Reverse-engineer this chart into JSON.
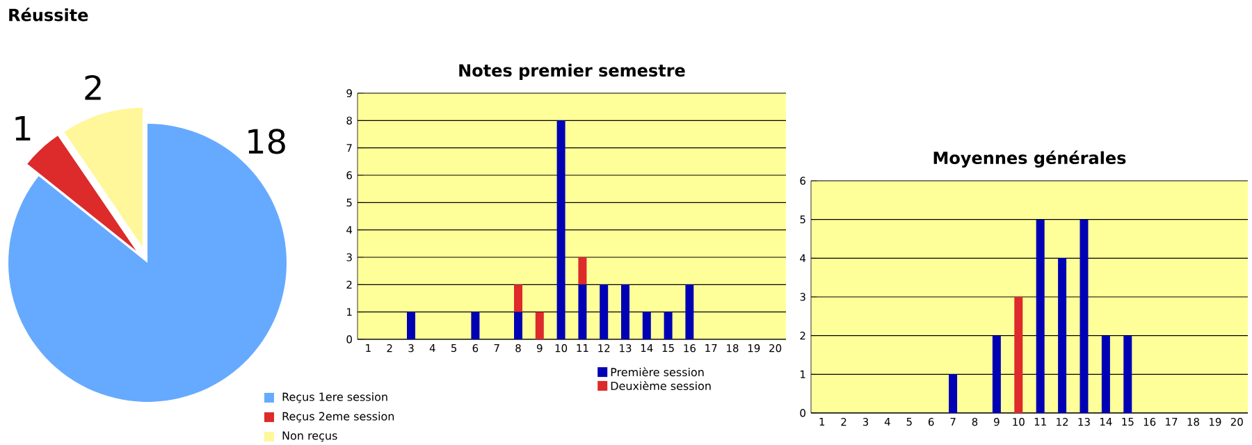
{
  "chart_data": [
    {
      "type": "pie",
      "title": "Réussite",
      "categories": [
        "Reçus 1ere session",
        "Reçus 2eme session",
        "Non reçus"
      ],
      "values": [
        18,
        1,
        2
      ],
      "colors": [
        "#66aaff",
        "#dd2a2a",
        "#fff799"
      ],
      "data_labels": true,
      "legend": "bottom right"
    },
    {
      "type": "bar",
      "title": "Notes premier semestre",
      "stacked": true,
      "categories": [
        "1",
        "2",
        "3",
        "4",
        "5",
        "6",
        "7",
        "8",
        "9",
        "10",
        "11",
        "12",
        "13",
        "14",
        "15",
        "16",
        "17",
        "18",
        "19",
        "20"
      ],
      "series": [
        {
          "name": "Première session",
          "color": "#0000b4",
          "values": [
            0,
            0,
            1,
            0,
            0,
            1,
            0,
            1,
            0,
            8,
            2,
            2,
            2,
            1,
            1,
            2,
            0,
            0,
            0,
            0
          ]
        },
        {
          "name": "Deuxième session",
          "color": "#dd2a2a",
          "values": [
            0,
            0,
            0,
            0,
            0,
            0,
            0,
            1,
            1,
            0,
            1,
            0,
            0,
            0,
            0,
            0,
            0,
            0,
            0,
            0
          ]
        }
      ],
      "ylim": [
        0,
        9
      ],
      "yticks": [
        0,
        1,
        2,
        3,
        4,
        5,
        6,
        7,
        8,
        9
      ],
      "grid": "y",
      "legend": "bottom"
    },
    {
      "type": "bar",
      "title": "Moyennes générales",
      "stacked": true,
      "categories": [
        "1",
        "2",
        "3",
        "4",
        "5",
        "6",
        "7",
        "8",
        "9",
        "10",
        "11",
        "12",
        "13",
        "14",
        "15",
        "16",
        "17",
        "18",
        "19",
        "20"
      ],
      "series": [
        {
          "color": "#0000b4",
          "values": [
            0,
            0,
            0,
            0,
            0,
            0,
            1,
            0,
            2,
            0,
            5,
            4,
            5,
            2,
            2,
            0,
            0,
            0,
            0,
            0
          ]
        },
        {
          "color": "#dd2a2a",
          "values": [
            0,
            0,
            0,
            0,
            0,
            0,
            0,
            0,
            0,
            3,
            0,
            0,
            0,
            0,
            0,
            0,
            0,
            0,
            0,
            0
          ]
        }
      ],
      "ylim": [
        0,
        6
      ],
      "yticks": [
        0,
        1,
        2,
        3,
        4,
        5,
        6
      ],
      "grid": "y"
    }
  ]
}
